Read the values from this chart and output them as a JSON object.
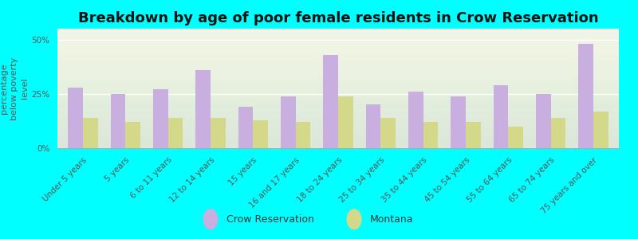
{
  "title": "Breakdown by age of poor female residents in Crow Reservation",
  "categories": [
    "Under 5 years",
    "5 years",
    "6 to 11 years",
    "12 to 14 years",
    "15 years",
    "16 and 17 years",
    "18 to 24 years",
    "25 to 34 years",
    "35 to 44 years",
    "45 to 54 years",
    "55 to 64 years",
    "65 to 74 years",
    "75 years and over"
  ],
  "crow_values": [
    28,
    25,
    27,
    36,
    19,
    24,
    43,
    20,
    26,
    24,
    29,
    25,
    48
  ],
  "montana_values": [
    14,
    12,
    14,
    14,
    13,
    12,
    24,
    14,
    12,
    12,
    10,
    14,
    17
  ],
  "crow_color": "#c9aee0",
  "montana_color": "#d4d98a",
  "background_color": "#00ffff",
  "ylabel": "percentage\nbelow poverty\nlevel",
  "ylim": [
    0,
    55
  ],
  "yticks": [
    0,
    25,
    50
  ],
  "ytick_labels": [
    "0%",
    "25%",
    "50%"
  ],
  "bar_width": 0.35,
  "legend_crow": "Crow Reservation",
  "legend_montana": "Montana",
  "title_fontsize": 13,
  "axis_label_fontsize": 8,
  "tick_fontsize": 7.5
}
